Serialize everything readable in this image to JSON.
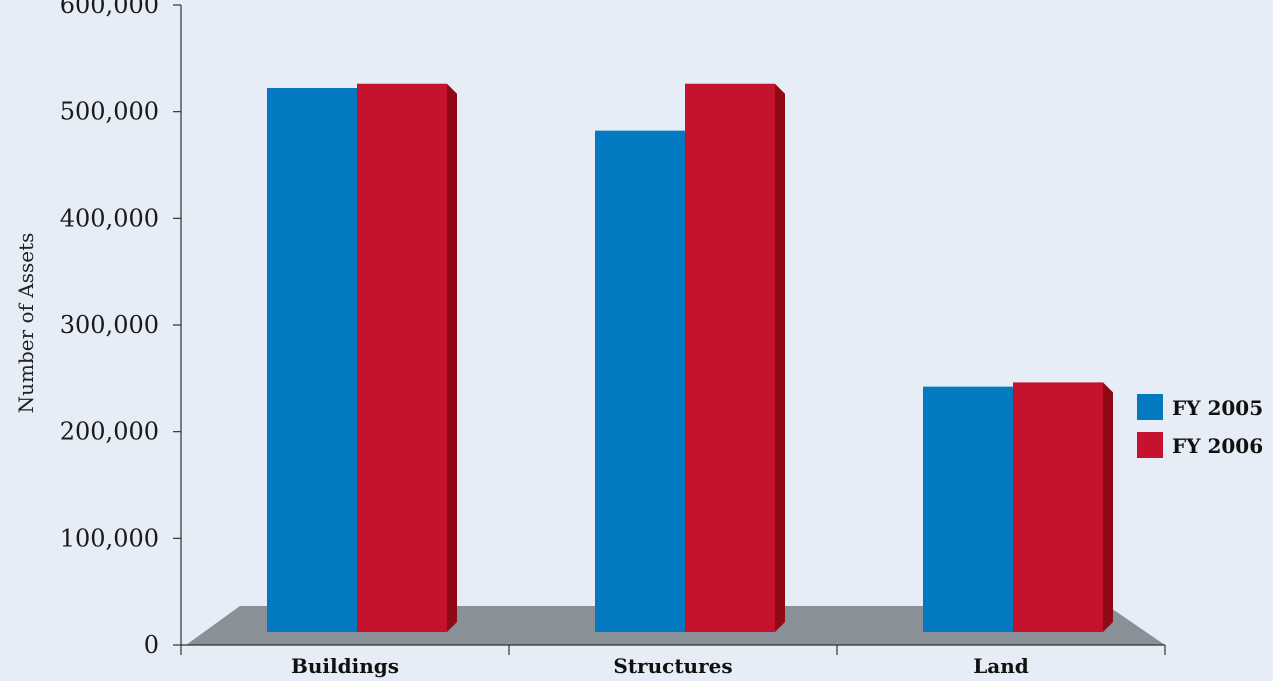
{
  "chart_data": {
    "type": "bar",
    "categories": [
      "Buildings",
      "Structures",
      "Land"
    ],
    "series": [
      {
        "name": "FY 2005",
        "values": [
          510000,
          470000,
          230000
        ],
        "color": "#0279c1",
        "side_color": "#01539a"
      },
      {
        "name": "FY 2006",
        "values": [
          514000,
          514000,
          234000
        ],
        "color": "#c4122f",
        "side_color": "#8f0a12"
      }
    ],
    "ylabel": "Number of Assets",
    "ylim": [
      0,
      600000
    ],
    "yticks": [
      0,
      100000,
      200000,
      300000,
      400000,
      500000,
      600000
    ],
    "ytick_labels": [
      "0",
      "100,000",
      "200,000",
      "300,000",
      "400,000",
      "500,000",
      "600,000"
    ],
    "legend_position": "right",
    "floor_color": "#8a9098",
    "grid": false
  }
}
